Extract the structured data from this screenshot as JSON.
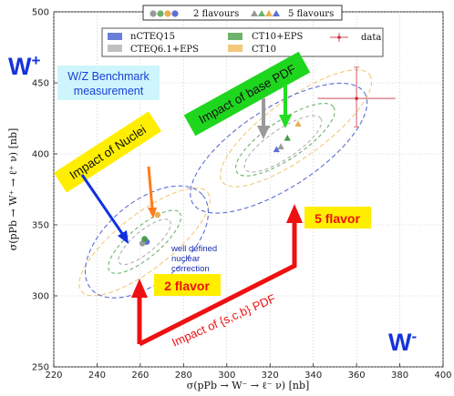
{
  "chart_data": {
    "type": "scatter",
    "xlabel": "σ(pPb → W⁻ → ℓ⁻ ν) [nb]",
    "ylabel": "σ(pPb → W⁺ → ℓ⁺ ν) [nb]",
    "xlim": [
      220,
      400
    ],
    "ylim": [
      250,
      500
    ],
    "xticks": [
      "220",
      "240",
      "260",
      "280",
      "300",
      "320",
      "340",
      "360",
      "380",
      "400"
    ],
    "yticks": [
      "250",
      "300",
      "350",
      "400",
      "450",
      "500"
    ],
    "grid": true,
    "top_legend": {
      "two": "2 flavours",
      "five": "5 flavours"
    },
    "legend_entries": [
      {
        "label": "nCTEQ15",
        "color": "#5b6fd6"
      },
      {
        "label": "CTEQ6.1+EPS",
        "color": "#c0c0c0"
      },
      {
        "label": "CT10+EPS",
        "color": "#6db36d"
      },
      {
        "label": "CT10",
        "color": "#f2c97a"
      },
      {
        "label": "data",
        "color": "#d9707a"
      }
    ],
    "series": [
      {
        "name": "nCTEQ15",
        "flavours": 2,
        "x": 263,
        "y": 338,
        "color": "#5b6fd6",
        "marker": "circle"
      },
      {
        "name": "CTEQ6.1+EPS",
        "flavours": 2,
        "x": 261,
        "y": 337,
        "color": "#9a9a9a",
        "marker": "circle"
      },
      {
        "name": "CT10+EPS",
        "flavours": 2,
        "x": 262,
        "y": 340,
        "color": "#4a9a4a",
        "marker": "circle"
      },
      {
        "name": "CT10",
        "flavours": 2,
        "x": 268,
        "y": 357,
        "color": "#e8b050",
        "marker": "circle"
      },
      {
        "name": "nCTEQ15",
        "flavours": 5,
        "x": 323,
        "y": 403,
        "color": "#5b6fd6",
        "marker": "triangle"
      },
      {
        "name": "CTEQ6.1+EPS",
        "flavours": 5,
        "x": 325,
        "y": 405,
        "color": "#9a9a9a",
        "marker": "triangle"
      },
      {
        "name": "CT10+EPS",
        "flavours": 5,
        "x": 328,
        "y": 411,
        "color": "#4a9a4a",
        "marker": "triangle"
      },
      {
        "name": "CT10",
        "flavours": 5,
        "x": 333,
        "y": 421,
        "color": "#e8b050",
        "marker": "triangle"
      },
      {
        "name": "data",
        "x": 360,
        "y": 439,
        "xerr": 18,
        "yerr_low": 20,
        "yerr_high": 22,
        "color": "#d9707a",
        "marker": "plus"
      }
    ]
  },
  "annotations": {
    "w_plus": "W",
    "w_plus_sup": "+",
    "w_minus": "W",
    "w_minus_sup": "-",
    "benchmark_line1": "W/Z Benchmark",
    "benchmark_line2": "measurement",
    "impact_nuclei": "Impact  of Nuclei",
    "impact_base_pdf": "Impact of base PDF",
    "nuclear_line1": "well defined",
    "nuclear_line2": "nuclear",
    "nuclear_line3": "correction",
    "two_flavor": "2 flavor",
    "five_flavor": "5 flavor",
    "impact_scb": "Impact of {s,c,b} PDF"
  }
}
